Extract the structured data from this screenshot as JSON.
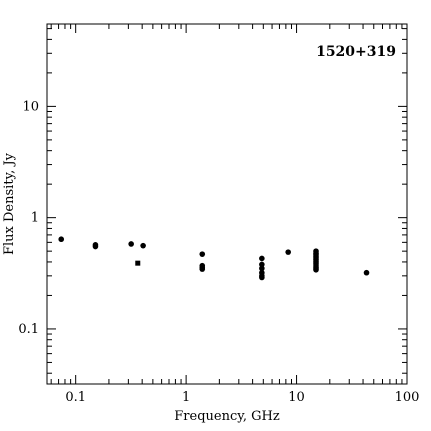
{
  "chart_data": {
    "type": "scatter",
    "source_name": "1520+319",
    "xlabel": "Frequency, GHz",
    "ylabel": "Flux Density, Jy",
    "x_scale": "log",
    "y_scale": "log",
    "xlim": [
      0.055,
      100
    ],
    "ylim": [
      0.032,
      55
    ],
    "x_ticks": [
      {
        "value": 0.1,
        "label": "0.1"
      },
      {
        "value": 1,
        "label": "1"
      },
      {
        "value": 10,
        "label": "10"
      },
      {
        "value": 100,
        "label": "100"
      }
    ],
    "y_ticks": [
      {
        "value": 0.1,
        "label": "0.1"
      },
      {
        "value": 1,
        "label": "1"
      },
      {
        "value": 10,
        "label": "10"
      }
    ],
    "grid": false,
    "legend": "none",
    "marker_color": "#000000",
    "series": [
      {
        "marker": "circle",
        "points": [
          {
            "x": 0.074,
            "y": 0.64
          },
          {
            "x": 0.151,
            "y": 0.57
          },
          {
            "x": 0.151,
            "y": 0.55
          },
          {
            "x": 0.318,
            "y": 0.58
          },
          {
            "x": 0.408,
            "y": 0.56
          },
          {
            "x": 1.4,
            "y": 0.47
          },
          {
            "x": 1.4,
            "y": 0.37
          },
          {
            "x": 1.4,
            "y": 0.355
          },
          {
            "x": 1.4,
            "y": 0.345
          },
          {
            "x": 4.85,
            "y": 0.43
          },
          {
            "x": 4.85,
            "y": 0.38
          },
          {
            "x": 4.85,
            "y": 0.35
          },
          {
            "x": 4.85,
            "y": 0.32
          },
          {
            "x": 4.85,
            "y": 0.3
          },
          {
            "x": 4.85,
            "y": 0.29
          },
          {
            "x": 8.4,
            "y": 0.49
          },
          {
            "x": 15.0,
            "y": 0.5
          },
          {
            "x": 15.0,
            "y": 0.48
          },
          {
            "x": 15.0,
            "y": 0.465
          },
          {
            "x": 15.0,
            "y": 0.45
          },
          {
            "x": 15.0,
            "y": 0.435
          },
          {
            "x": 15.0,
            "y": 0.42
          },
          {
            "x": 15.0,
            "y": 0.405
          },
          {
            "x": 15.0,
            "y": 0.39
          },
          {
            "x": 15.0,
            "y": 0.375
          },
          {
            "x": 15.0,
            "y": 0.36
          },
          {
            "x": 15.0,
            "y": 0.35
          },
          {
            "x": 15.0,
            "y": 0.34
          },
          {
            "x": 43.0,
            "y": 0.32
          }
        ]
      },
      {
        "marker": "square",
        "points": [
          {
            "x": 0.365,
            "y": 0.39
          }
        ]
      }
    ]
  }
}
